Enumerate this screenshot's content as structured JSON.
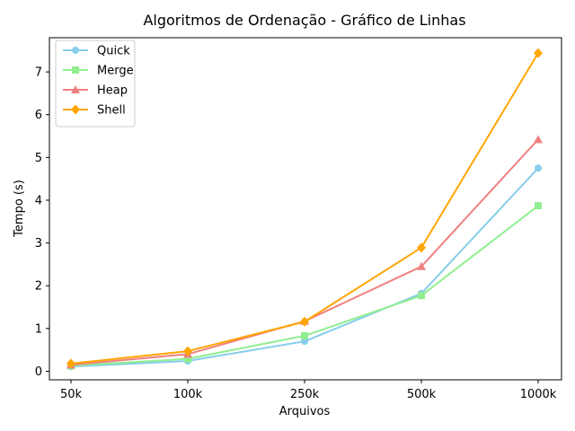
{
  "chart_data": {
    "type": "line",
    "title": "Algoritmos de Ordenação - Gráfico de Linhas",
    "xlabel": "Arquivos",
    "ylabel": "Tempo (s)",
    "categories": [
      "50k",
      "100k",
      "250k",
      "500k",
      "1000k"
    ],
    "ylim": [
      -0.2,
      7.8
    ],
    "yticks": [
      0,
      1,
      2,
      3,
      4,
      5,
      6,
      7
    ],
    "grid": false,
    "legend_position": "top-left",
    "series": [
      {
        "name": "Quick",
        "color": "#87ceeb",
        "marker": "circle",
        "values": [
          0.11,
          0.24,
          0.7,
          1.82,
          4.75
        ]
      },
      {
        "name": "Merge",
        "color": "#90ee90",
        "marker": "square",
        "values": [
          0.13,
          0.29,
          0.83,
          1.77,
          3.87
        ]
      },
      {
        "name": "Heap",
        "color": "#f08080",
        "marker": "triangle",
        "values": [
          0.15,
          0.4,
          1.17,
          2.45,
          5.42
        ]
      },
      {
        "name": "Shell",
        "color": "#ffa500",
        "marker": "diamond",
        "values": [
          0.18,
          0.47,
          1.16,
          2.89,
          7.44
        ]
      }
    ]
  }
}
